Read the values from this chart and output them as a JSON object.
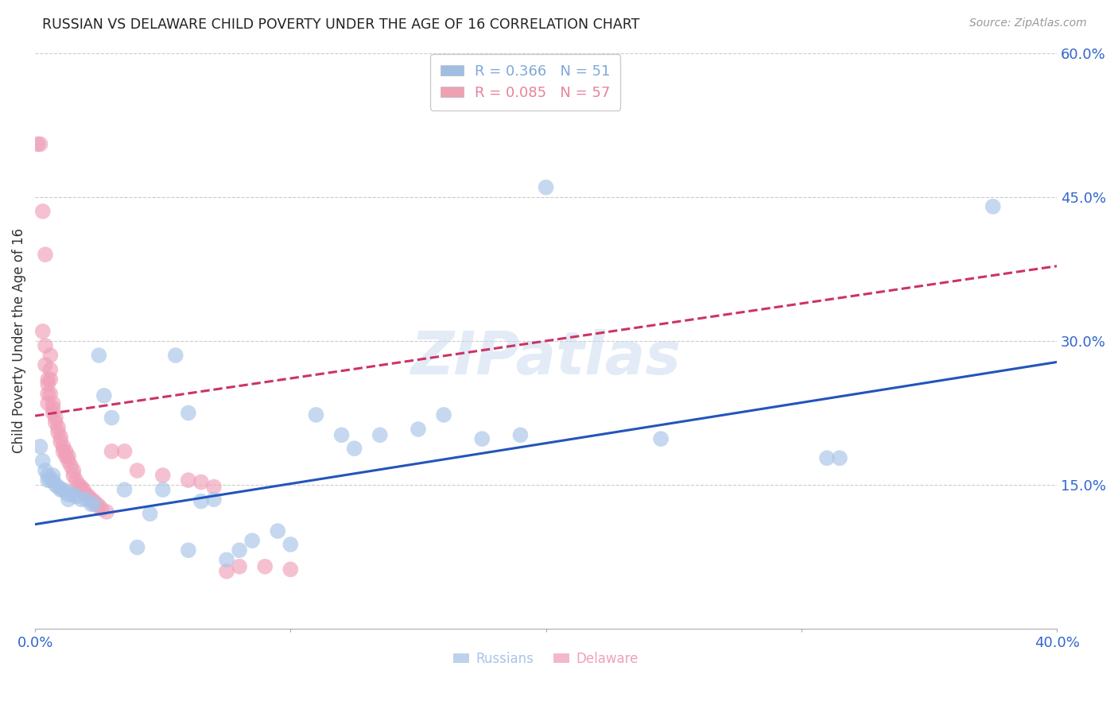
{
  "title": "RUSSIAN VS DELAWARE CHILD POVERTY UNDER THE AGE OF 16 CORRELATION CHART",
  "source": "Source: ZipAtlas.com",
  "ylabel": "Child Poverty Under the Age of 16",
  "xlim": [
    0.0,
    0.4
  ],
  "ylim": [
    0.0,
    0.6
  ],
  "xtick_positions": [
    0.0,
    0.1,
    0.2,
    0.3,
    0.4
  ],
  "xtick_labels": [
    "0.0%",
    "",
    "",
    "",
    "40.0%"
  ],
  "yticks_right": [
    0.6,
    0.45,
    0.3,
    0.15
  ],
  "ytick_labels_right": [
    "60.0%",
    "45.0%",
    "30.0%",
    "15.0%"
  ],
  "watermark": "ZIPatlas",
  "legend_entries": [
    {
      "label": "R = 0.366   N = 51",
      "color": "#7fa8d8"
    },
    {
      "label": "R = 0.085   N = 57",
      "color": "#e8829a"
    }
  ],
  "russians": {
    "color": "#a8c4e8",
    "trendline_color": "#2255bb",
    "trendline_style": "solid",
    "trendline": [
      0.0,
      0.109,
      0.4,
      0.278
    ],
    "points": [
      [
        0.002,
        0.19
      ],
      [
        0.003,
        0.175
      ],
      [
        0.004,
        0.165
      ],
      [
        0.005,
        0.16
      ],
      [
        0.005,
        0.155
      ],
      [
        0.006,
        0.155
      ],
      [
        0.007,
        0.155
      ],
      [
        0.007,
        0.16
      ],
      [
        0.008,
        0.15
      ],
      [
        0.009,
        0.148
      ],
      [
        0.01,
        0.145
      ],
      [
        0.011,
        0.145
      ],
      [
        0.012,
        0.143
      ],
      [
        0.013,
        0.14
      ],
      [
        0.013,
        0.135
      ],
      [
        0.015,
        0.14
      ],
      [
        0.016,
        0.138
      ],
      [
        0.018,
        0.135
      ],
      [
        0.02,
        0.135
      ],
      [
        0.022,
        0.13
      ],
      [
        0.023,
        0.13
      ],
      [
        0.025,
        0.285
      ],
      [
        0.027,
        0.243
      ],
      [
        0.03,
        0.22
      ],
      [
        0.035,
        0.145
      ],
      [
        0.04,
        0.085
      ],
      [
        0.045,
        0.12
      ],
      [
        0.05,
        0.145
      ],
      [
        0.055,
        0.285
      ],
      [
        0.06,
        0.225
      ],
      [
        0.06,
        0.082
      ],
      [
        0.065,
        0.133
      ],
      [
        0.07,
        0.135
      ],
      [
        0.075,
        0.072
      ],
      [
        0.08,
        0.082
      ],
      [
        0.085,
        0.092
      ],
      [
        0.095,
        0.102
      ],
      [
        0.1,
        0.088
      ],
      [
        0.11,
        0.223
      ],
      [
        0.12,
        0.202
      ],
      [
        0.125,
        0.188
      ],
      [
        0.135,
        0.202
      ],
      [
        0.15,
        0.208
      ],
      [
        0.16,
        0.223
      ],
      [
        0.175,
        0.198
      ],
      [
        0.19,
        0.202
      ],
      [
        0.2,
        0.46
      ],
      [
        0.245,
        0.198
      ],
      [
        0.31,
        0.178
      ],
      [
        0.315,
        0.178
      ],
      [
        0.375,
        0.44
      ]
    ]
  },
  "delaware": {
    "color": "#f0a0b8",
    "trendline_color": "#cc3366",
    "trendline_style": "dashed",
    "trendline": [
      0.0,
      0.222,
      0.4,
      0.378
    ],
    "points": [
      [
        0.001,
        0.505
      ],
      [
        0.002,
        0.505
      ],
      [
        0.003,
        0.435
      ],
      [
        0.003,
        0.31
      ],
      [
        0.004,
        0.39
      ],
      [
        0.004,
        0.295
      ],
      [
        0.004,
        0.275
      ],
      [
        0.005,
        0.26
      ],
      [
        0.005,
        0.255
      ],
      [
        0.005,
        0.245
      ],
      [
        0.005,
        0.235
      ],
      [
        0.006,
        0.285
      ],
      [
        0.006,
        0.27
      ],
      [
        0.006,
        0.26
      ],
      [
        0.006,
        0.245
      ],
      [
        0.007,
        0.235
      ],
      [
        0.007,
        0.23
      ],
      [
        0.007,
        0.225
      ],
      [
        0.008,
        0.22
      ],
      [
        0.008,
        0.215
      ],
      [
        0.009,
        0.21
      ],
      [
        0.009,
        0.205
      ],
      [
        0.01,
        0.2
      ],
      [
        0.01,
        0.195
      ],
      [
        0.011,
        0.19
      ],
      [
        0.011,
        0.185
      ],
      [
        0.012,
        0.185
      ],
      [
        0.012,
        0.18
      ],
      [
        0.013,
        0.18
      ],
      [
        0.013,
        0.175
      ],
      [
        0.014,
        0.17
      ],
      [
        0.015,
        0.165
      ],
      [
        0.015,
        0.16
      ],
      [
        0.016,
        0.155
      ],
      [
        0.017,
        0.15
      ],
      [
        0.018,
        0.148
      ],
      [
        0.018,
        0.145
      ],
      [
        0.019,
        0.145
      ],
      [
        0.02,
        0.14
      ],
      [
        0.021,
        0.138
      ],
      [
        0.022,
        0.135
      ],
      [
        0.023,
        0.133
      ],
      [
        0.024,
        0.13
      ],
      [
        0.025,
        0.128
      ],
      [
        0.026,
        0.125
      ],
      [
        0.028,
        0.122
      ],
      [
        0.03,
        0.185
      ],
      [
        0.035,
        0.185
      ],
      [
        0.04,
        0.165
      ],
      [
        0.05,
        0.16
      ],
      [
        0.06,
        0.155
      ],
      [
        0.065,
        0.153
      ],
      [
        0.07,
        0.148
      ],
      [
        0.075,
        0.06
      ],
      [
        0.08,
        0.065
      ],
      [
        0.09,
        0.065
      ],
      [
        0.1,
        0.062
      ]
    ]
  }
}
